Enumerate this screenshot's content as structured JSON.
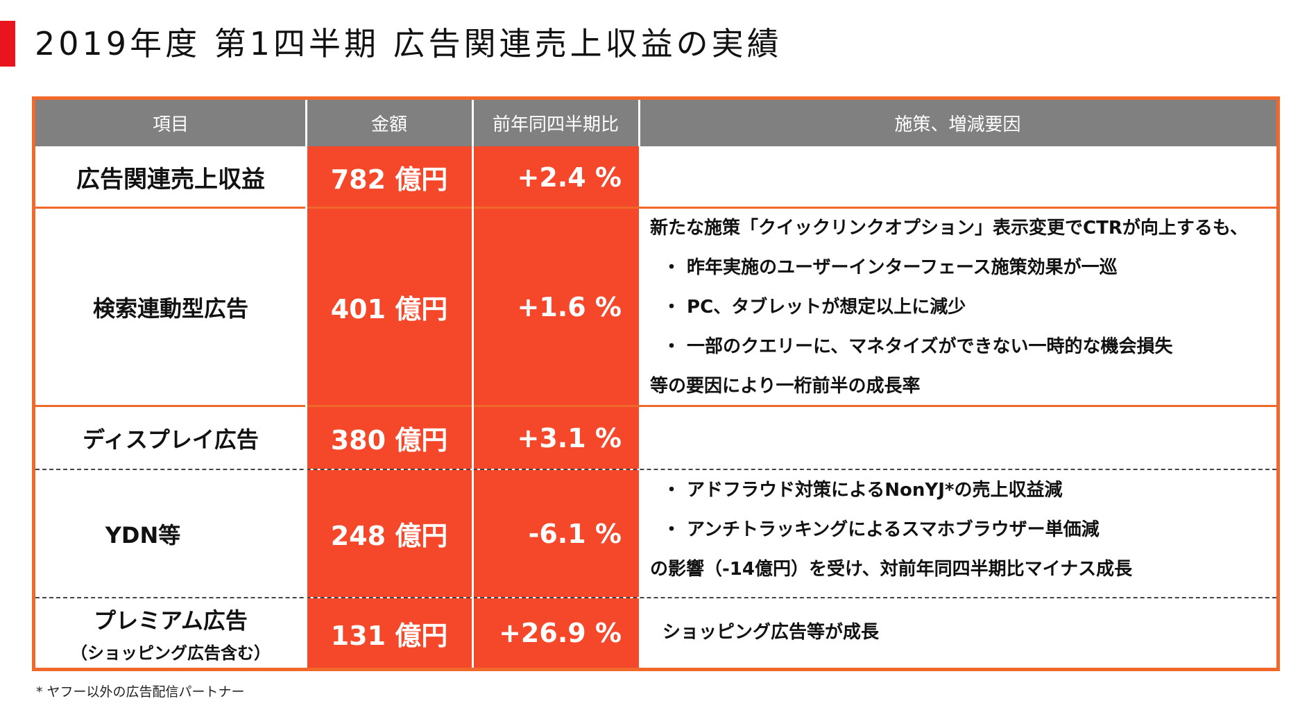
{
  "title": "2019年度 第1四半期 広告関連売上収益の実績",
  "table": {
    "headers": [
      "項目",
      "金額",
      "前年同四半期比",
      "施策、増減要因"
    ],
    "rows": [
      {
        "name": "広告関連売上収益",
        "amount": "782 億円",
        "yoy": "+2.4 %"
      },
      {
        "name": "検索連動型広告",
        "amount": "401 億円",
        "yoy": "+1.6 %",
        "notes": [
          "新たな施策「クイックリンクオプション」表示変更でCTRが向上するも、",
          "・ 昨年実施のユーザーインターフェース施策効果が一巡",
          "・ PC、タブレットが想定以上に減少",
          "・ 一部のクエリーに、マネタイズができない一時的な機会損失",
          "等の要因により一桁前半の成長率"
        ]
      },
      {
        "name": "ディスプレイ広告",
        "amount": "380 億円",
        "yoy": "+3.1 %"
      },
      {
        "name": "YDN等",
        "amount": "248 億円",
        "yoy": "-6.1 %",
        "notes": [
          "・ アドフラウド対策によるNonYJ*の売上収益減",
          "・ アンチトラッキングによるスマホブラウザー単価減",
          "の影響（-14億円）を受け、対前年同四半期比マイナス成長"
        ]
      },
      {
        "name": "プレミアム広告",
        "name_sub": "（ショッピング広告含む）",
        "amount": "131 億円",
        "yoy": "+26.9 %",
        "notes": [
          "ショッピング広告等が成長"
        ]
      }
    ]
  },
  "footnote": "* ヤフー以外の広告配信パートナー",
  "colors": {
    "accent": "#e8141e",
    "highlight": "#f5472a",
    "border": "#f0682a",
    "header": "#808080"
  }
}
